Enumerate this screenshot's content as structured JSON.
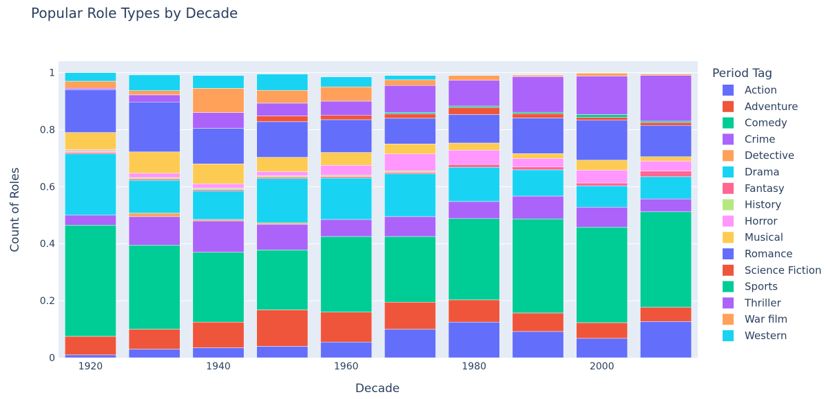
{
  "chart_data": {
    "type": "bar",
    "stacked": true,
    "title": "Popular Role Types by Decade",
    "xlabel": "Decade",
    "ylabel": "Count of Roles",
    "legend_title": "Period Tag",
    "legend_position": "right",
    "categories": [
      1920,
      1930,
      1940,
      1950,
      1960,
      1970,
      1980,
      1990,
      2000,
      2010
    ],
    "x_ticks": [
      "1920",
      "1940",
      "1960",
      "1980",
      "2000"
    ],
    "y_ticks": [
      "0",
      "0.2",
      "0.4",
      "0.6",
      "0.8",
      "1"
    ],
    "ylim": [
      0,
      1.04
    ],
    "grid": true,
    "series": [
      {
        "name": "Action",
        "color": "#636efa",
        "values": [
          0.01,
          0.03,
          0.035,
          0.04,
          0.055,
          0.1,
          0.125,
          0.092,
          0.068,
          0.127
        ]
      },
      {
        "name": "Adventure",
        "color": "#EF553B",
        "values": [
          0.065,
          0.07,
          0.09,
          0.128,
          0.105,
          0.095,
          0.078,
          0.065,
          0.055,
          0.05
        ]
      },
      {
        "name": "Comedy",
        "color": "#00cc96",
        "values": [
          0.39,
          0.295,
          0.245,
          0.21,
          0.265,
          0.23,
          0.285,
          0.33,
          0.335,
          0.335
        ]
      },
      {
        "name": "Crime",
        "color": "#ab63fa",
        "values": [
          0.035,
          0.1,
          0.11,
          0.09,
          0.06,
          0.07,
          0.06,
          0.08,
          0.07,
          0.045
        ]
      },
      {
        "name": "Detective",
        "color": "#FFA15A",
        "values": [
          0.0,
          0.012,
          0.005,
          0.005,
          0.0,
          0.0,
          0.0,
          0.0,
          0.0,
          0.0
        ]
      },
      {
        "name": "Drama",
        "color": "#19d3f3",
        "values": [
          0.215,
          0.115,
          0.1,
          0.155,
          0.145,
          0.15,
          0.12,
          0.092,
          0.075,
          0.078
        ]
      },
      {
        "name": "Fantasy",
        "color": "#FF6692",
        "values": [
          0.005,
          0.005,
          0.005,
          0.005,
          0.005,
          0.005,
          0.01,
          0.01,
          0.01,
          0.02
        ]
      },
      {
        "name": "History",
        "color": "#B6E880",
        "values": [
          0.005,
          0.005,
          0.005,
          0.005,
          0.005,
          0.005,
          0.0,
          0.0,
          0.0,
          0.0
        ]
      },
      {
        "name": "Horror",
        "color": "#FF97FF",
        "values": [
          0.005,
          0.015,
          0.015,
          0.015,
          0.035,
          0.06,
          0.05,
          0.03,
          0.045,
          0.035
        ]
      },
      {
        "name": "Musical",
        "color": "#FECB52",
        "values": [
          0.06,
          0.075,
          0.07,
          0.05,
          0.045,
          0.035,
          0.025,
          0.017,
          0.035,
          0.015
        ]
      },
      {
        "name": "Romance",
        "color": "#636efa",
        "values": [
          0.15,
          0.175,
          0.125,
          0.125,
          0.115,
          0.09,
          0.1,
          0.125,
          0.14,
          0.11
        ]
      },
      {
        "name": "Science Fiction",
        "color": "#EF553B",
        "values": [
          0.0,
          0.0,
          0.0,
          0.02,
          0.015,
          0.015,
          0.025,
          0.015,
          0.01,
          0.01
        ]
      },
      {
        "name": "Sports",
        "color": "#00cc96",
        "values": [
          0.0,
          0.0,
          0.0,
          0.0,
          0.0,
          0.005,
          0.005,
          0.005,
          0.01,
          0.005
        ]
      },
      {
        "name": "Thriller",
        "color": "#ab63fa",
        "values": [
          0.005,
          0.025,
          0.055,
          0.045,
          0.05,
          0.095,
          0.09,
          0.125,
          0.135,
          0.16
        ]
      },
      {
        "name": "War film",
        "color": "#FFA15A",
        "values": [
          0.025,
          0.015,
          0.085,
          0.045,
          0.05,
          0.02,
          0.017,
          0.005,
          0.01,
          0.005
        ]
      },
      {
        "name": "Western",
        "color": "#19d3f3",
        "values": [
          0.03,
          0.055,
          0.045,
          0.057,
          0.035,
          0.015,
          0.0,
          0.0,
          0.0,
          0.0
        ]
      }
    ]
  }
}
